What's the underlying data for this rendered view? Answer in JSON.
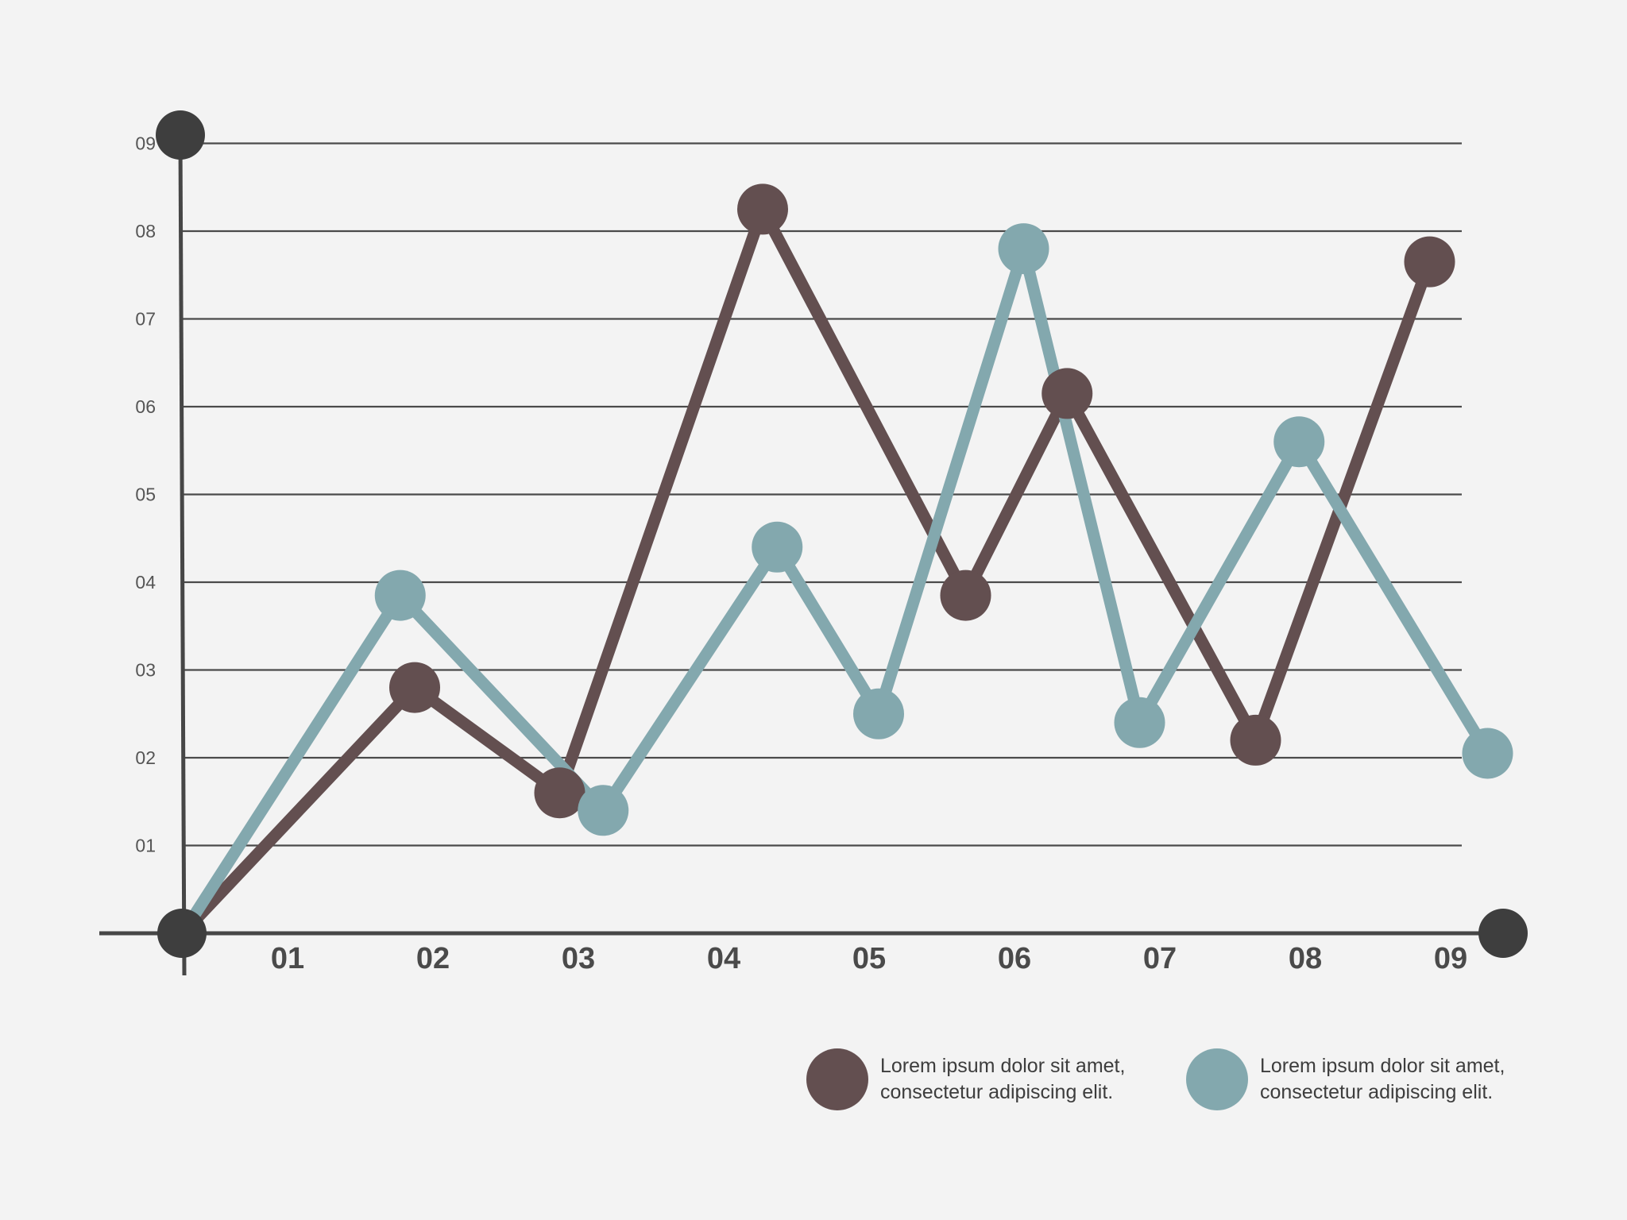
{
  "chart_data": {
    "type": "line",
    "title": "",
    "xlabel": "",
    "ylabel": "",
    "x_ticks": [
      "01",
      "02",
      "03",
      "04",
      "05",
      "06",
      "07",
      "08",
      "09"
    ],
    "y_ticks": [
      "01",
      "02",
      "03",
      "04",
      "05",
      "06",
      "07",
      "08",
      "09"
    ],
    "xlim": [
      0,
      9
    ],
    "ylim": [
      0,
      9
    ],
    "grid": "horizontal",
    "legend": "bottom-right",
    "series": [
      {
        "name": "Lorem ipsum dolor sit amet, consectetur adipiscing elit.",
        "name_lines": [
          "Lorem ipsum dolor sit amet,",
          "consectetur adipiscing elit."
        ],
        "color": "#634f50",
        "points": [
          {
            "x": 0,
            "y": 0
          },
          {
            "x": 1.6,
            "y": 2.8
          },
          {
            "x": 2.6,
            "y": 1.6
          },
          {
            "x": 4.0,
            "y": 8.25
          },
          {
            "x": 5.4,
            "y": 3.85
          },
          {
            "x": 6.1,
            "y": 6.15
          },
          {
            "x": 7.4,
            "y": 2.2
          },
          {
            "x": 8.6,
            "y": 7.65
          }
        ]
      },
      {
        "name": "Lorem ipsum dolor sit amet, consectetur adipiscing elit.",
        "name_lines": [
          "Lorem ipsum dolor sit amet,",
          "consectetur adipiscing elit."
        ],
        "color": "#83a8ae",
        "points": [
          {
            "x": 0,
            "y": 0
          },
          {
            "x": 1.5,
            "y": 3.85
          },
          {
            "x": 2.9,
            "y": 1.4
          },
          {
            "x": 4.1,
            "y": 4.4
          },
          {
            "x": 4.8,
            "y": 2.5
          },
          {
            "x": 5.8,
            "y": 7.8
          },
          {
            "x": 6.6,
            "y": 2.4
          },
          {
            "x": 7.7,
            "y": 5.6
          },
          {
            "x": 9.0,
            "y": 2.05
          }
        ]
      }
    ]
  },
  "colors": {
    "background": "#f3f3f3",
    "axis": "#464646",
    "gridline": "#4a4a4a",
    "axis_endpoint": "#3e3e3e"
  }
}
